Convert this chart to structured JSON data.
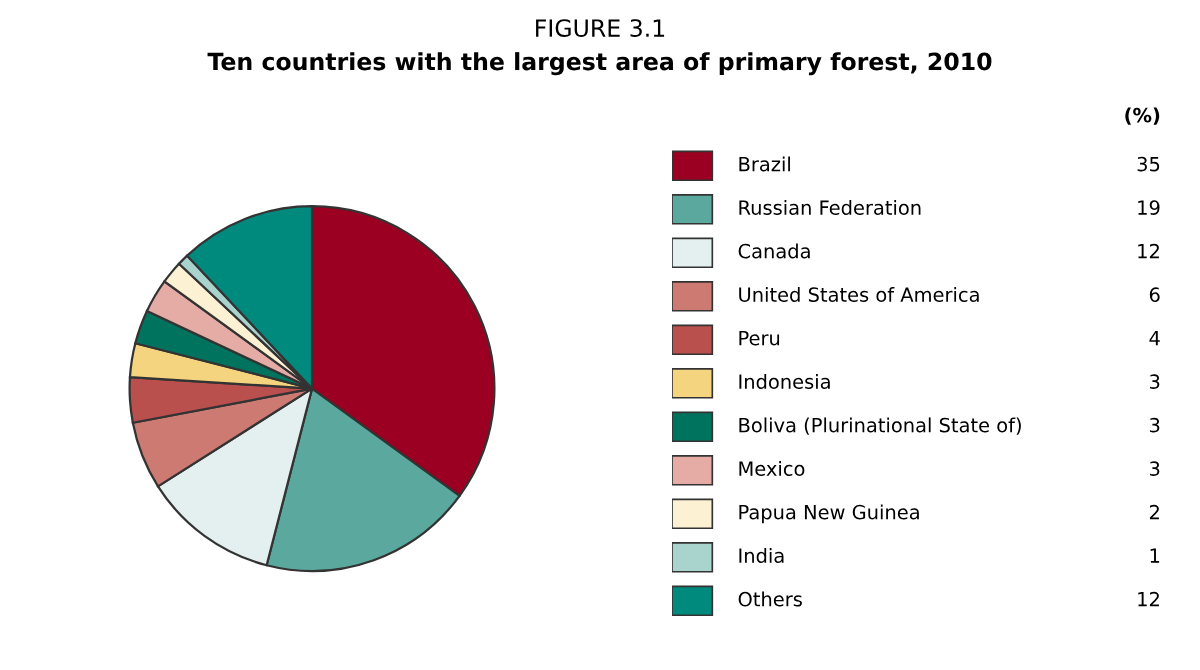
{
  "chart_data": {
    "type": "pie",
    "title": "FIGURE 3.1",
    "subtitle": "Ten countries with the largest area of primary forest, 2010",
    "annotations": [
      "(%)"
    ],
    "categories": [
      "Brazil",
      "Russian Federation",
      "Canada",
      "United States of America",
      "Peru",
      "Indonesia",
      "Boliva (Plurinational State of)",
      "Mexico",
      "Papua New Guinea",
      "India",
      "Others"
    ],
    "values": [
      35,
      19,
      12,
      6,
      4,
      3,
      3,
      3,
      2,
      1,
      12
    ],
    "colors": [
      "#9b0022",
      "#5aa89e",
      "#e3f0ef",
      "#cd7a72",
      "#b9504d",
      "#f4d47f",
      "#00735f",
      "#e4aca4",
      "#fdf1d3",
      "#a9d3cd",
      "#008a7d"
    ],
    "data_labels": true,
    "legend": "right"
  }
}
